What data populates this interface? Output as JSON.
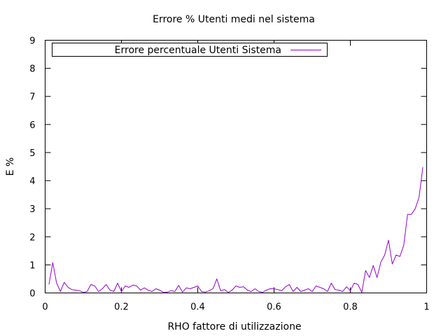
{
  "chart_data": {
    "type": "line",
    "title": "Errore % Utenti medi nel sistema",
    "xlabel": "RHO fattore di utilizzazione",
    "ylabel": "E %",
    "xlim": [
      0,
      1
    ],
    "ylim": [
      0,
      9
    ],
    "x_ticks": [
      {
        "value": 0,
        "label": "0"
      },
      {
        "value": 0.2,
        "label": "0.2"
      },
      {
        "value": 0.4,
        "label": "0.4"
      },
      {
        "value": 0.6,
        "label": "0.6"
      },
      {
        "value": 0.8,
        "label": "0.8"
      },
      {
        "value": 1,
        "label": "1"
      }
    ],
    "y_ticks": [
      {
        "value": 0,
        "label": "0"
      },
      {
        "value": 1,
        "label": "1"
      },
      {
        "value": 2,
        "label": "2"
      },
      {
        "value": 3,
        "label": "3"
      },
      {
        "value": 4,
        "label": "4"
      },
      {
        "value": 5,
        "label": "5"
      },
      {
        "value": 6,
        "label": "6"
      },
      {
        "value": 7,
        "label": "7"
      },
      {
        "value": 8,
        "label": "8"
      },
      {
        "value": 9,
        "label": "9"
      }
    ],
    "grid": false,
    "legend_position": "top-left",
    "series": [
      {
        "name": "Errore percentuale Utenti Sistema",
        "color": "#9400d3",
        "x": [
          0.01,
          0.02,
          0.03,
          0.04,
          0.05,
          0.06,
          0.07,
          0.08,
          0.09,
          0.1,
          0.11,
          0.12,
          0.13,
          0.14,
          0.15,
          0.16,
          0.17,
          0.18,
          0.19,
          0.2,
          0.21,
          0.22,
          0.23,
          0.24,
          0.25,
          0.26,
          0.27,
          0.28,
          0.29,
          0.3,
          0.31,
          0.32,
          0.33,
          0.34,
          0.35,
          0.36,
          0.37,
          0.38,
          0.39,
          0.4,
          0.41,
          0.42,
          0.43,
          0.44,
          0.45,
          0.46,
          0.47,
          0.48,
          0.49,
          0.5,
          0.51,
          0.52,
          0.53,
          0.54,
          0.55,
          0.56,
          0.57,
          0.58,
          0.59,
          0.6,
          0.61,
          0.62,
          0.63,
          0.64,
          0.65,
          0.66,
          0.67,
          0.68,
          0.69,
          0.7,
          0.71,
          0.72,
          0.73,
          0.74,
          0.75,
          0.76,
          0.77,
          0.78,
          0.79,
          0.8,
          0.81,
          0.82,
          0.83,
          0.84,
          0.85,
          0.86,
          0.87,
          0.88,
          0.89,
          0.9,
          0.91,
          0.92,
          0.93,
          0.94,
          0.95,
          0.96,
          0.97,
          0.98,
          0.99
        ],
        "y": [
          0.3,
          1.08,
          0.35,
          0.05,
          0.38,
          0.2,
          0.12,
          0.1,
          0.08,
          0.02,
          0.05,
          0.3,
          0.25,
          0.05,
          0.15,
          0.3,
          0.1,
          0.05,
          0.35,
          0.05,
          0.25,
          0.2,
          0.28,
          0.25,
          0.1,
          0.18,
          0.1,
          0.05,
          0.15,
          0.1,
          0.02,
          0.03,
          0.08,
          0.05,
          0.27,
          0.03,
          0.18,
          0.15,
          0.2,
          0.25,
          0.05,
          0.03,
          0.08,
          0.15,
          0.5,
          0.08,
          0.12,
          0.02,
          0.1,
          0.25,
          0.2,
          0.22,
          0.1,
          0.05,
          0.15,
          0.05,
          0.02,
          0.1,
          0.15,
          0.15,
          0.12,
          0.08,
          0.22,
          0.3,
          0.05,
          0.2,
          0.05,
          0.1,
          0.15,
          0.05,
          0.25,
          0.2,
          0.15,
          0.05,
          0.35,
          0.12,
          0.1,
          0.05,
          0.22,
          0.08,
          0.35,
          0.3,
          0.02,
          0.8,
          0.55,
          0.98,
          0.55,
          1.1,
          1.35,
          1.88,
          1.03,
          1.35,
          1.3,
          1.7,
          2.8,
          2.8,
          3.0,
          3.4,
          4.48
        ]
      }
    ]
  }
}
